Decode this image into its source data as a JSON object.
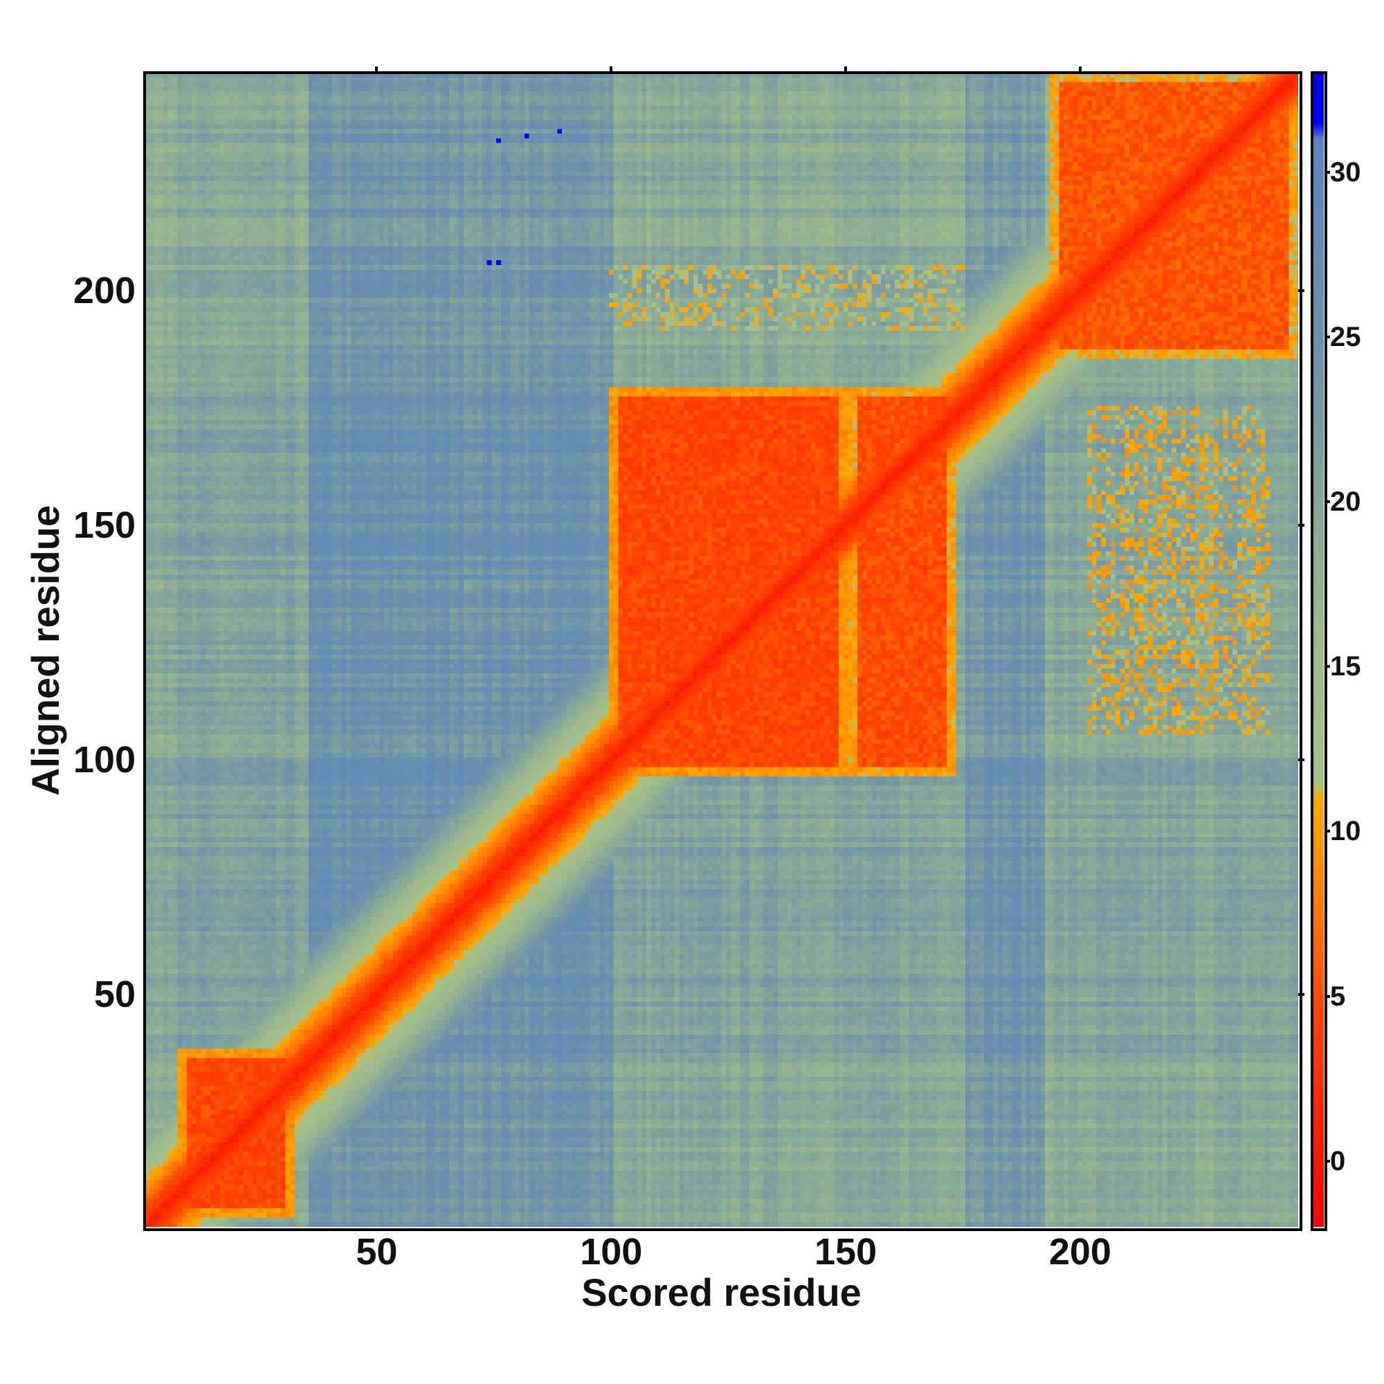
{
  "chart_data": {
    "type": "heatmap",
    "title": "",
    "xlabel": "Scored residue",
    "ylabel": "Aligned residue",
    "n_residues": 246,
    "xlim": [
      0.5,
      246.5
    ],
    "ylim": [
      0.5,
      246.5
    ],
    "x_ticks": [
      50,
      100,
      150,
      200
    ],
    "y_ticks": [
      50,
      100,
      150,
      200
    ],
    "colorbar": {
      "range": [
        -2,
        33
      ],
      "ticks": [
        0,
        5,
        10,
        15,
        20,
        25,
        30
      ],
      "stops": [
        [
          -2,
          "#ff0000"
        ],
        [
          2,
          "#ff2a00"
        ],
        [
          5,
          "#ff4a00"
        ],
        [
          7,
          "#ff7000"
        ],
        [
          9,
          "#ff9000"
        ],
        [
          11,
          "#ffaa00"
        ],
        [
          11.5,
          "#a8c088"
        ],
        [
          16,
          "#9cba8c"
        ],
        [
          20,
          "#86a898"
        ],
        [
          25,
          "#6a90ae"
        ],
        [
          31,
          "#5a84c0"
        ],
        [
          31.5,
          "#0000ff"
        ],
        [
          33,
          "#0000ff"
        ]
      ]
    },
    "model": {
      "column_baseline": [
        [
          1,
          35,
          19
        ],
        [
          35,
          100,
          27
        ],
        [
          100,
          175,
          19
        ],
        [
          175,
          192,
          26
        ],
        [
          192,
          246,
          18
        ]
      ],
      "row_baseline": [
        [
          1,
          35,
          20
        ],
        [
          35,
          100,
          23
        ],
        [
          100,
          180,
          22
        ],
        [
          180,
          246,
          20
        ]
      ],
      "diagonal_band_slope": 1.0,
      "confident_blocks": [
        {
          "x": [
            8,
            32
          ],
          "y": [
            3,
            38
          ],
          "value": 3
        },
        {
          "x": [
            100,
            150
          ],
          "y": [
            97,
            179
          ],
          "value": 3
        },
        {
          "x": [
            151,
            173
          ],
          "y": [
            97,
            179
          ],
          "value": 3.5
        },
        {
          "x": [
            194,
            246
          ],
          "y": [
            186,
            246
          ],
          "value": 4
        }
      ],
      "cross_patches": [
        {
          "x": [
            202,
            240
          ],
          "y": [
            106,
            175
          ],
          "value": 12
        },
        {
          "x": [
            100,
            175
          ],
          "y": [
            192,
            205
          ],
          "value": 13
        }
      ],
      "outliers_blue": [
        [
          76,
          232
        ],
        [
          82,
          233
        ],
        [
          89,
          234
        ],
        [
          74,
          206
        ],
        [
          76,
          206
        ]
      ]
    }
  }
}
